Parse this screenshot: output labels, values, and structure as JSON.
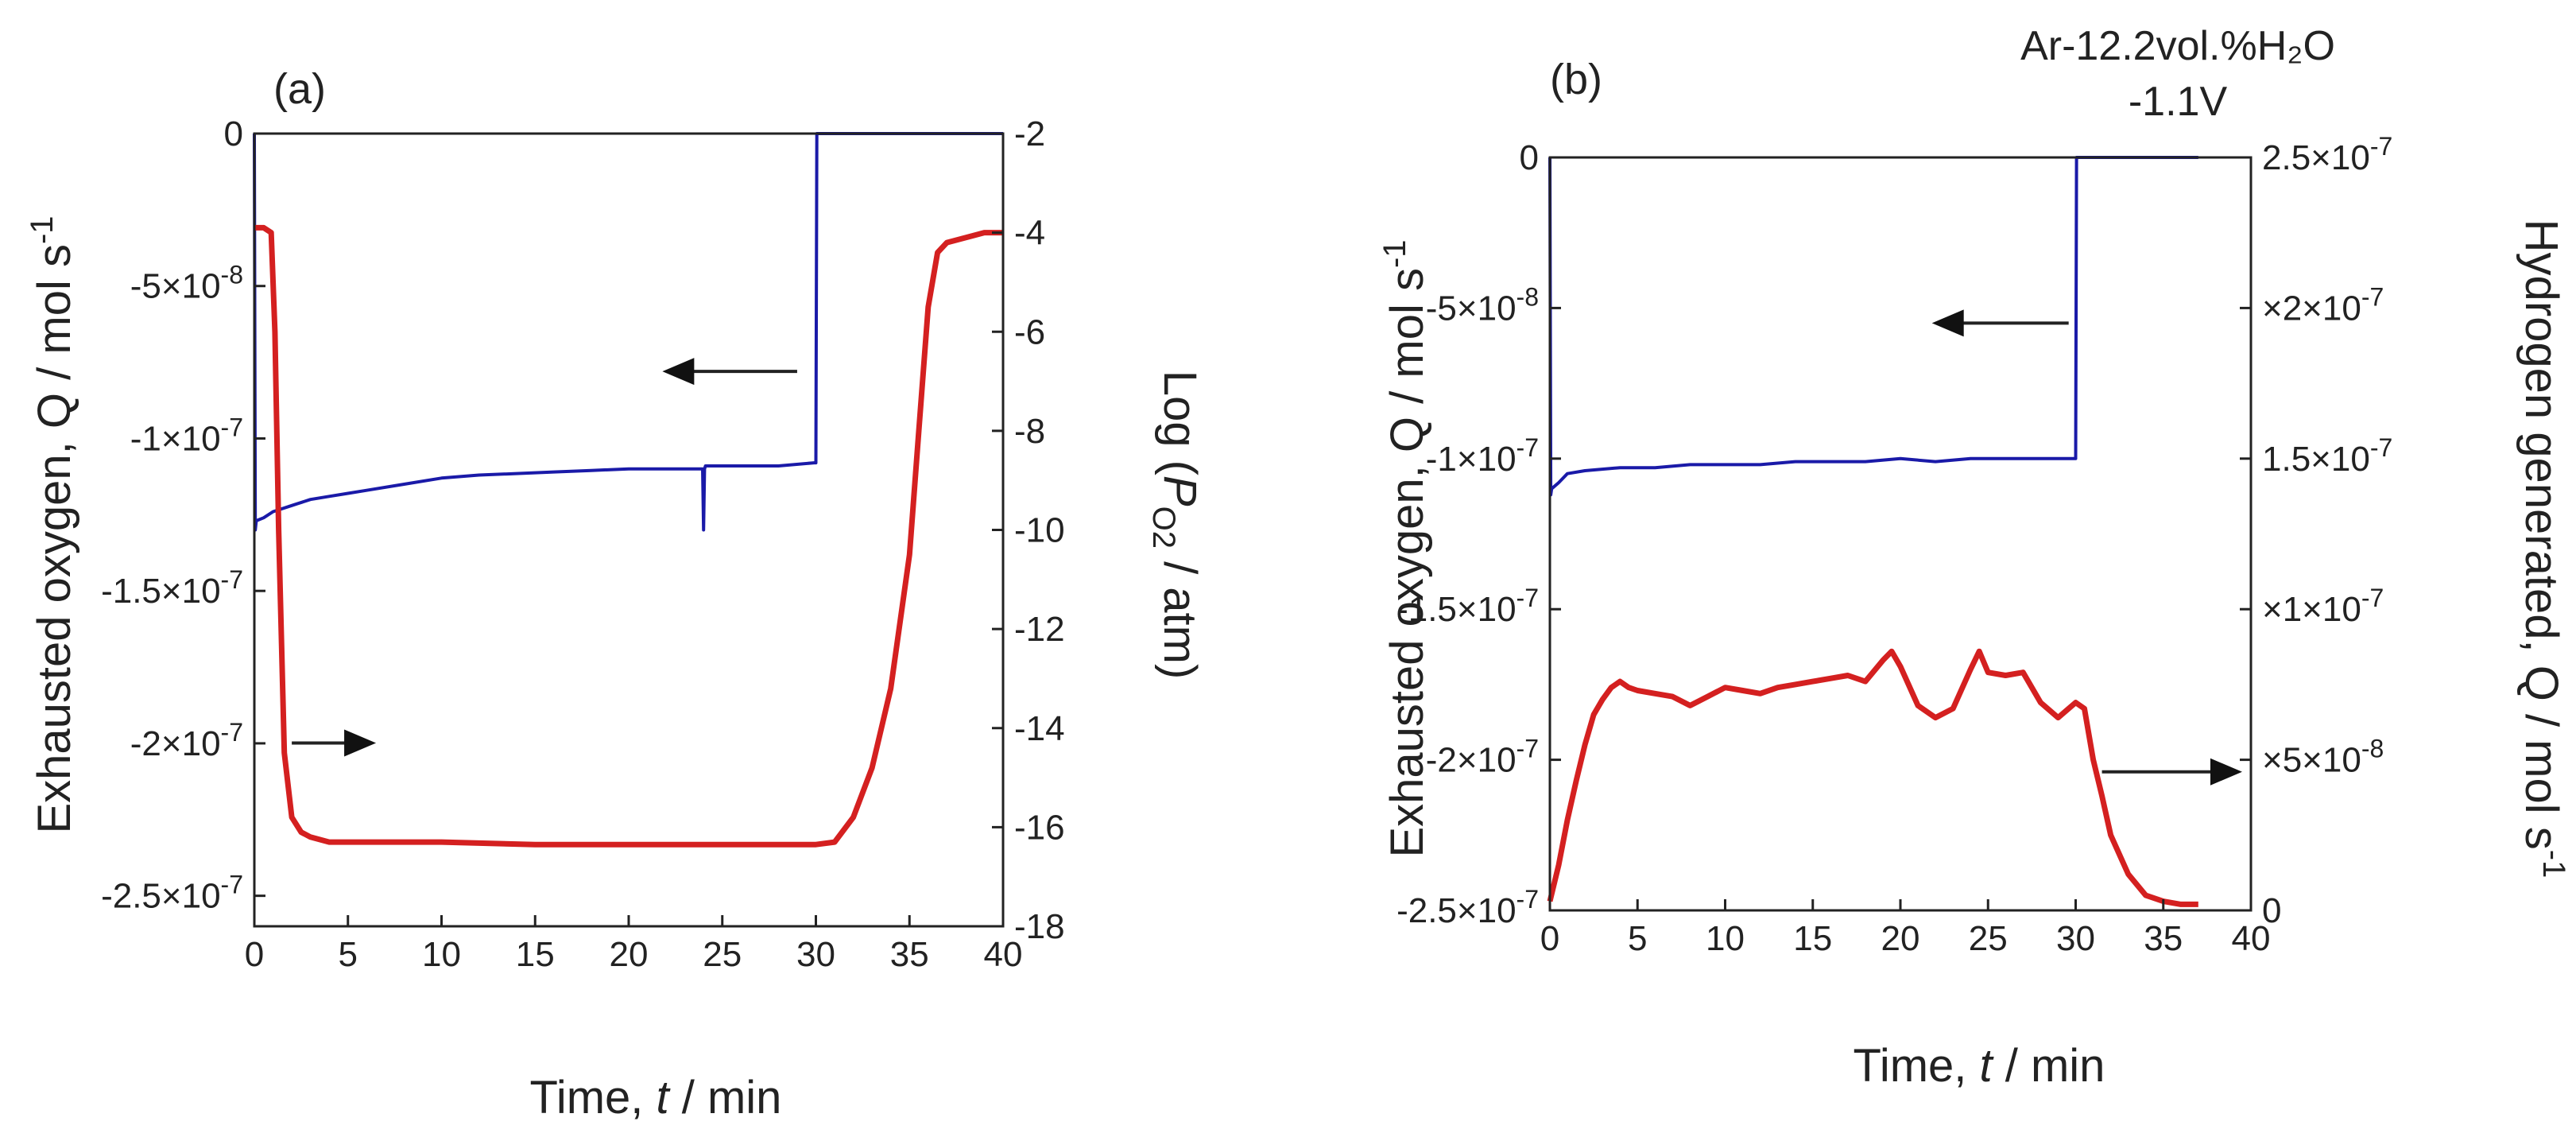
{
  "chart_data": [
    {
      "type": "line",
      "panel_label": "(a)",
      "xlabel": {
        "prefix": "Time, ",
        "var": "t",
        "suffix": " / min"
      },
      "ylabel_left": {
        "text": "Exhausted oxygen, Q / mol s",
        "sup": "-1"
      },
      "ylabel_right": {
        "prefix": "Log (",
        "var": "P",
        "sub": "O2",
        "suffix": " / atm)"
      },
      "xlim": [
        0,
        40
      ],
      "ylim_left": [
        -2.6e-07,
        0
      ],
      "ylim_right": [
        -18,
        -2
      ],
      "x_ticks": [
        "0",
        "5",
        "10",
        "15",
        "20",
        "25",
        "30",
        "35",
        "40"
      ],
      "y_left_ticks": [
        {
          "value": 0,
          "label": "0"
        },
        {
          "value": -5e-08,
          "label": "-5×10-8"
        },
        {
          "value": -1e-07,
          "label": "-1×10-7"
        },
        {
          "value": -1.5e-07,
          "label": "-1.5×10-7"
        },
        {
          "value": -2e-07,
          "label": "-2×10-7"
        },
        {
          "value": -2.5e-07,
          "label": "-2.5×10-7"
        }
      ],
      "y_right_ticks": [
        "-2",
        "-4",
        "-6",
        "-8",
        "-10",
        "-12",
        "-14",
        "-16",
        "-18"
      ],
      "series": [
        {
          "name": "Exhausted oxygen",
          "axis": "left",
          "color": "#1a1aa8",
          "x": [
            0,
            0.05,
            0.1,
            0.5,
            1,
            2,
            3,
            4,
            5,
            6,
            8,
            10,
            12,
            14,
            16,
            18,
            20,
            22,
            23.95,
            24.0,
            24.05,
            24.1,
            26,
            28,
            29.9,
            30.0,
            30.05,
            35,
            40
          ],
          "y": [
            0,
            -1.3e-07,
            -1.27e-07,
            -1.26e-07,
            -1.24e-07,
            -1.22e-07,
            -1.2e-07,
            -1.19e-07,
            -1.18e-07,
            -1.17e-07,
            -1.15e-07,
            -1.13e-07,
            -1.12e-07,
            -1.115e-07,
            -1.11e-07,
            -1.105e-07,
            -1.1e-07,
            -1.1e-07,
            -1.1e-07,
            -1.3e-07,
            -1.1e-07,
            -1.09e-07,
            -1.09e-07,
            -1.09e-07,
            -1.08e-07,
            -1.08e-07,
            0,
            0,
            0
          ]
        },
        {
          "name": "Log PO2",
          "axis": "right",
          "color": "#d42020",
          "x": [
            0,
            0.5,
            0.9,
            1.1,
            1.3,
            1.6,
            2,
            2.5,
            3,
            4,
            5,
            10,
            15,
            20,
            25,
            30,
            31,
            32,
            33,
            34,
            35,
            35.5,
            36,
            36.5,
            37,
            38,
            39,
            40
          ],
          "y": [
            -3.9,
            -3.9,
            -4.0,
            -6.0,
            -10.0,
            -14.5,
            -15.8,
            -16.1,
            -16.2,
            -16.3,
            -16.3,
            -16.3,
            -16.35,
            -16.35,
            -16.35,
            -16.35,
            -16.3,
            -15.8,
            -14.8,
            -13.2,
            -10.5,
            -8.0,
            -5.5,
            -4.4,
            -4.2,
            -4.1,
            -4.0,
            -4.0
          ]
        }
      ],
      "arrows": [
        {
          "direction": "left",
          "x_from": 29,
          "x_to": 21.8,
          "y_right": -6.8
        },
        {
          "direction": "right",
          "x_from": 2,
          "x_to": 6.5,
          "y_right": -14.3
        }
      ]
    },
    {
      "type": "line",
      "panel_label": "(b)",
      "title_lines": [
        "Ar-12.2vol.%H₂O",
        "-1.1V"
      ],
      "xlabel": {
        "prefix": "Time, ",
        "var": "t",
        "suffix": " / min"
      },
      "ylabel_left": {
        "text": "Exhausted oxygen, Q / mol s",
        "sup": "-1"
      },
      "ylabel_right": {
        "text": "Hydrogen generated, Q / mol s",
        "sup": "-1"
      },
      "xlim": [
        0,
        40
      ],
      "ylim_left": [
        -2.5e-07,
        0
      ],
      "ylim_right": [
        0,
        2.5e-07
      ],
      "x_ticks": [
        "0",
        "5",
        "10",
        "15",
        "20",
        "25",
        "30",
        "35",
        "40"
      ],
      "y_left_ticks": [
        {
          "value": 0,
          "label": "0"
        },
        {
          "value": -5e-08,
          "label": "-5×10-8"
        },
        {
          "value": -1e-07,
          "label": "-1×10-7"
        },
        {
          "value": -1.5e-07,
          "label": "-1.5×10-7"
        },
        {
          "value": -2e-07,
          "label": "-2×10-7"
        },
        {
          "value": -2.5e-07,
          "label": "-2.5×10-7"
        }
      ],
      "y_right_ticks": [
        {
          "value": 2.5e-07,
          "label": "2.5×10-7"
        },
        {
          "value": 2e-07,
          "label": "×2×10-7"
        },
        {
          "value": 1.5e-07,
          "label": "1.5×10-7"
        },
        {
          "value": 1e-07,
          "label": "×1×10-7"
        },
        {
          "value": 5e-08,
          "label": "×5×10-8"
        },
        {
          "value": 0,
          "label": "0"
        }
      ],
      "series": [
        {
          "name": "Exhausted oxygen",
          "axis": "left",
          "color": "#1a1aa8",
          "x": [
            0,
            0.05,
            0.1,
            0.5,
            1,
            2,
            4,
            6,
            8,
            10,
            12,
            14,
            16,
            18,
            20,
            22,
            24,
            26,
            28,
            29.9,
            30.0,
            30.05,
            35,
            37
          ],
          "y": [
            0,
            -1.12e-07,
            -1.1e-07,
            -1.08e-07,
            -1.05e-07,
            -1.04e-07,
            -1.03e-07,
            -1.03e-07,
            -1.02e-07,
            -1.02e-07,
            -1.02e-07,
            -1.01e-07,
            -1.01e-07,
            -1.01e-07,
            -1e-07,
            -1.01e-07,
            -1e-07,
            -1e-07,
            -1e-07,
            -1e-07,
            -1e-07,
            0,
            0,
            0
          ]
        },
        {
          "name": "Hydrogen generated",
          "axis": "right",
          "color": "#d42020",
          "x": [
            0,
            0.5,
            1,
            1.5,
            2,
            2.5,
            3,
            3.5,
            4,
            4.5,
            5,
            6,
            7,
            8,
            9,
            10,
            11,
            12,
            13,
            14,
            15,
            16,
            17,
            18,
            19,
            19.5,
            20,
            21,
            22,
            23,
            24,
            24.5,
            25,
            26,
            27,
            28,
            29,
            30,
            30.5,
            31,
            31.5,
            32,
            33,
            34,
            35,
            36,
            37
          ],
          "y": [
            3e-09,
            1.5e-08,
            3e-08,
            4.3e-08,
            5.5e-08,
            6.5e-08,
            7e-08,
            7.4e-08,
            7.6e-08,
            7.4e-08,
            7.3e-08,
            7.2e-08,
            7.1e-08,
            6.8e-08,
            7.1e-08,
            7.4e-08,
            7.3e-08,
            7.2e-08,
            7.4e-08,
            7.5e-08,
            7.6e-08,
            7.7e-08,
            7.8e-08,
            7.6e-08,
            8.3e-08,
            8.6e-08,
            8.1e-08,
            6.8e-08,
            6.4e-08,
            6.7e-08,
            8e-08,
            8.6e-08,
            7.9e-08,
            7.8e-08,
            7.9e-08,
            6.9e-08,
            6.4e-08,
            6.9e-08,
            6.7e-08,
            5e-08,
            3.8e-08,
            2.5e-08,
            1.2e-08,
            5e-09,
            3e-09,
            2e-09,
            2e-09
          ]
        }
      ],
      "arrows": [
        {
          "direction": "left",
          "x_from": 29.6,
          "x_to": 21.8,
          "y_right": 1.95e-07
        },
        {
          "direction": "right",
          "x_from": 31.5,
          "x_to": 39.5,
          "y_right": 4.6e-08
        }
      ]
    }
  ]
}
